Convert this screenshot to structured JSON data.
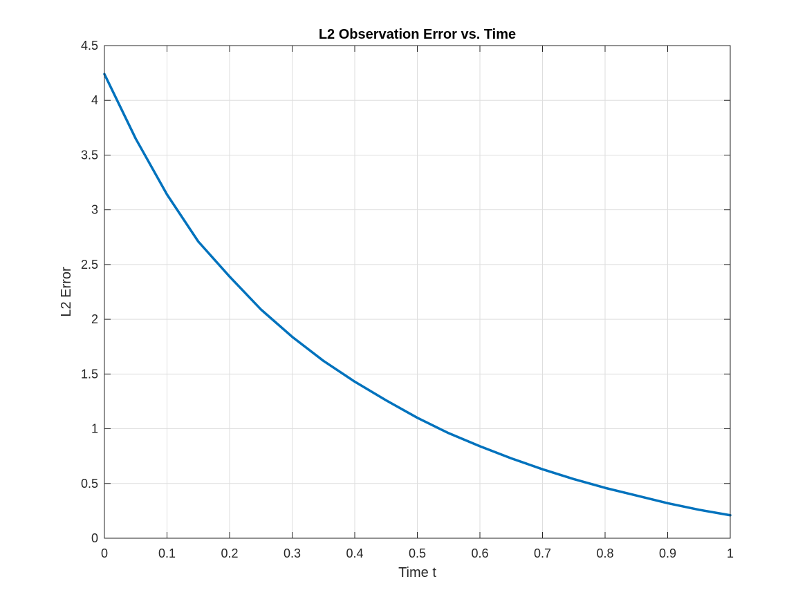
{
  "chart_data": {
    "type": "line",
    "title": "L2 Observation Error vs. Time",
    "xlabel": "Time t",
    "ylabel": "L2 Error",
    "xlim": [
      0,
      1
    ],
    "ylim": [
      0,
      4.5
    ],
    "xticks": [
      0,
      0.1,
      0.2,
      0.3,
      0.4,
      0.5,
      0.6,
      0.7,
      0.8,
      0.9,
      1
    ],
    "xtick_labels": [
      "0",
      "0.1",
      "0.2",
      "0.3",
      "0.4",
      "0.5",
      "0.6",
      "0.7",
      "0.8",
      "0.9",
      "1"
    ],
    "yticks": [
      0,
      0.5,
      1,
      1.5,
      2,
      2.5,
      3,
      3.5,
      4,
      4.5
    ],
    "ytick_labels": [
      "0",
      "0.5",
      "1",
      "1.5",
      "2",
      "2.5",
      "3",
      "3.5",
      "4",
      "4.5"
    ],
    "grid": true,
    "series": [
      {
        "color": "#0072BD",
        "x": [
          0,
          0.05,
          0.1,
          0.15,
          0.2,
          0.25,
          0.3,
          0.35,
          0.4,
          0.45,
          0.5,
          0.55,
          0.6,
          0.65,
          0.7,
          0.75,
          0.8,
          0.85,
          0.9,
          0.95,
          1
        ],
        "y": [
          4.24,
          3.65,
          3.14,
          2.71,
          2.39,
          2.09,
          1.84,
          1.62,
          1.43,
          1.26,
          1.1,
          0.96,
          0.84,
          0.73,
          0.63,
          0.54,
          0.46,
          0.39,
          0.32,
          0.26,
          0.21
        ]
      }
    ]
  }
}
